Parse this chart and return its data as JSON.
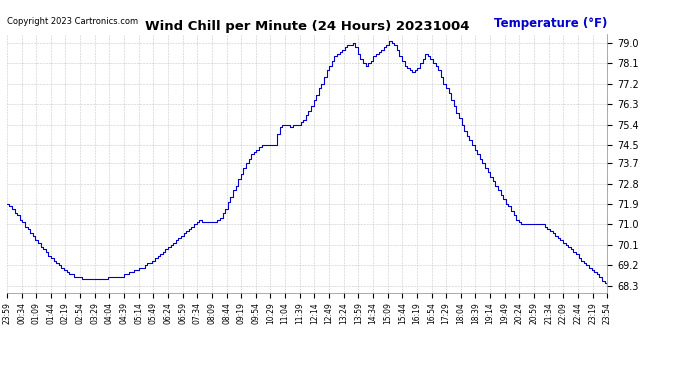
{
  "title": "Wind Chill per Minute (24 Hours) 20231004",
  "ylabel": "Temperature (°F)",
  "copyright": "Copyright 2023 Cartronics.com",
  "line_color": "#0000CC",
  "bg_color": "#ffffff",
  "grid_color": "#bbbbbb",
  "yticks": [
    68.3,
    69.2,
    70.1,
    71.0,
    71.9,
    72.8,
    73.7,
    74.5,
    75.4,
    76.3,
    77.2,
    78.1,
    79.0
  ],
  "ylim": [
    68.0,
    79.4
  ],
  "x_labels": [
    "23:59",
    "00:34",
    "01:09",
    "01:44",
    "02:19",
    "02:54",
    "03:29",
    "04:04",
    "04:39",
    "05:14",
    "05:49",
    "06:24",
    "06:59",
    "07:34",
    "08:09",
    "08:44",
    "09:19",
    "09:54",
    "10:29",
    "11:04",
    "11:39",
    "12:14",
    "12:49",
    "13:24",
    "13:59",
    "14:34",
    "15:09",
    "15:44",
    "16:19",
    "16:54",
    "17:29",
    "18:04",
    "18:39",
    "19:14",
    "19:49",
    "20:24",
    "20:59",
    "21:34",
    "22:09",
    "22:44",
    "23:19",
    "23:54"
  ],
  "data_y": [
    71.9,
    71.8,
    71.7,
    71.5,
    71.4,
    71.2,
    71.1,
    70.9,
    70.8,
    70.6,
    70.5,
    70.3,
    70.2,
    70.0,
    69.9,
    69.8,
    69.6,
    69.5,
    69.4,
    69.3,
    69.2,
    69.1,
    69.0,
    68.9,
    68.8,
    68.8,
    68.7,
    68.7,
    68.7,
    68.6,
    68.6,
    68.6,
    68.6,
    68.6,
    68.6,
    68.6,
    68.6,
    68.6,
    68.6,
    68.7,
    68.7,
    68.7,
    68.7,
    68.7,
    68.7,
    68.8,
    68.8,
    68.9,
    68.9,
    69.0,
    69.0,
    69.1,
    69.1,
    69.2,
    69.3,
    69.3,
    69.4,
    69.5,
    69.6,
    69.7,
    69.8,
    69.9,
    70.0,
    70.1,
    70.2,
    70.3,
    70.4,
    70.5,
    70.6,
    70.7,
    70.8,
    70.9,
    71.0,
    71.1,
    71.2,
    71.1,
    71.1,
    71.1,
    71.1,
    71.1,
    71.1,
    71.2,
    71.3,
    71.5,
    71.7,
    72.0,
    72.2,
    72.5,
    72.7,
    73.0,
    73.2,
    73.5,
    73.7,
    73.9,
    74.1,
    74.2,
    74.3,
    74.4,
    74.5,
    74.5,
    74.5,
    74.5,
    74.5,
    74.5,
    75.0,
    75.3,
    75.4,
    75.4,
    75.4,
    75.3,
    75.4,
    75.4,
    75.4,
    75.5,
    75.6,
    75.8,
    76.0,
    76.2,
    76.5,
    76.7,
    77.0,
    77.2,
    77.5,
    77.8,
    78.0,
    78.2,
    78.4,
    78.5,
    78.6,
    78.7,
    78.8,
    78.9,
    78.9,
    79.0,
    78.8,
    78.5,
    78.3,
    78.1,
    78.0,
    78.1,
    78.2,
    78.4,
    78.5,
    78.6,
    78.7,
    78.8,
    78.9,
    79.1,
    79.0,
    78.9,
    78.7,
    78.4,
    78.2,
    78.0,
    77.9,
    77.8,
    77.7,
    77.8,
    77.9,
    78.1,
    78.3,
    78.5,
    78.4,
    78.3,
    78.1,
    78.0,
    77.8,
    77.5,
    77.2,
    77.0,
    76.8,
    76.5,
    76.2,
    75.9,
    75.7,
    75.4,
    75.1,
    74.9,
    74.7,
    74.5,
    74.3,
    74.1,
    73.9,
    73.7,
    73.5,
    73.3,
    73.1,
    72.9,
    72.7,
    72.5,
    72.3,
    72.1,
    71.9,
    71.8,
    71.6,
    71.4,
    71.2,
    71.1,
    71.0,
    71.0,
    71.0,
    71.0,
    71.0,
    71.0,
    71.0,
    71.0,
    71.0,
    70.9,
    70.8,
    70.7,
    70.6,
    70.5,
    70.4,
    70.3,
    70.2,
    70.1,
    70.0,
    69.9,
    69.8,
    69.7,
    69.5,
    69.4,
    69.3,
    69.2,
    69.1,
    69.0,
    68.9,
    68.8,
    68.7,
    68.5,
    68.4,
    68.3
  ]
}
